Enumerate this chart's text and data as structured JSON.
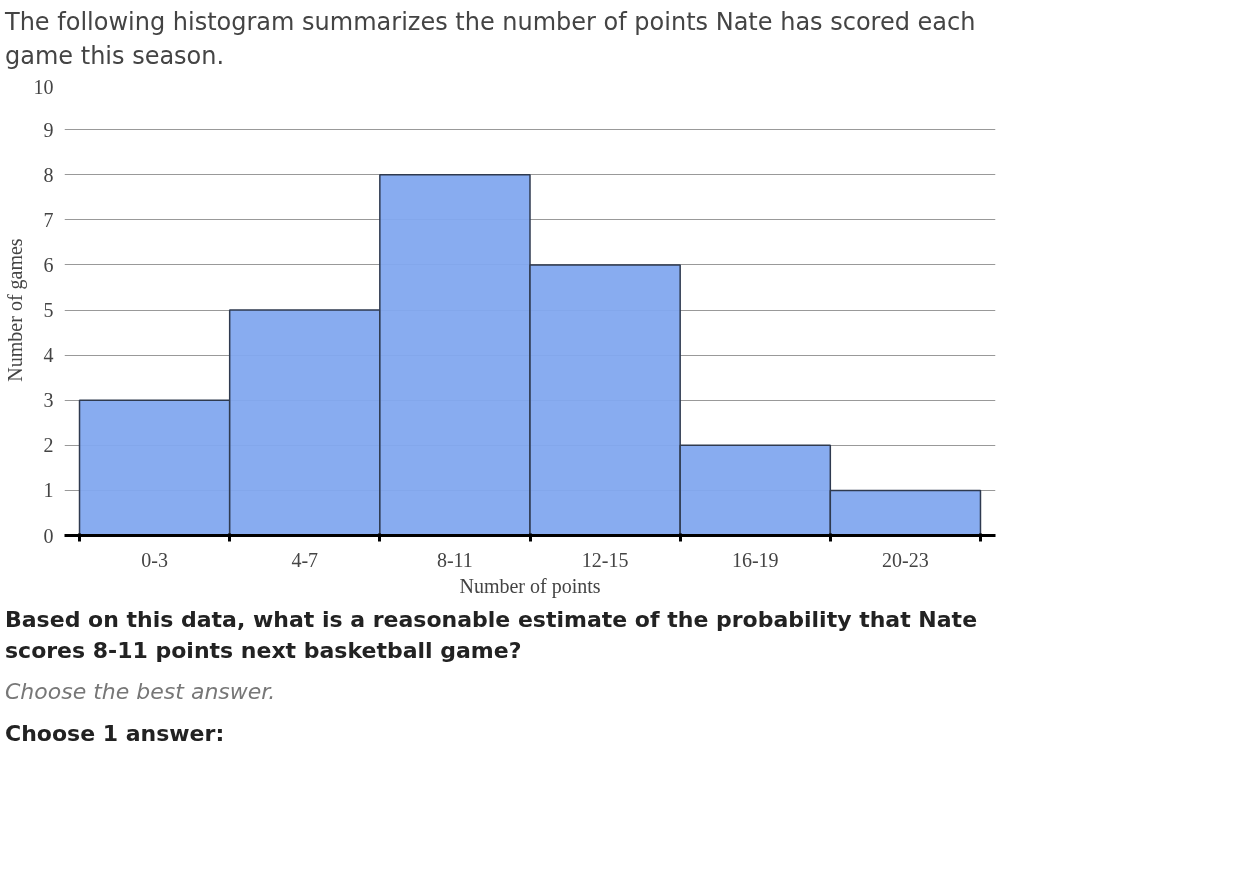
{
  "chart_data": {
    "type": "bar",
    "title": "The following histogram summarizes the number of points Nate has scored each game this season.",
    "xlabel": "Number of points",
    "ylabel": "Number of games",
    "categories": [
      "0-3",
      "4-7",
      "8-11",
      "12-15",
      "16-19",
      "20-23"
    ],
    "values": [
      3,
      5,
      8,
      6,
      2,
      1
    ],
    "color": "#82a8ef",
    "ylim": [
      0,
      10
    ],
    "yticks": [
      0,
      1,
      2,
      3,
      4,
      5,
      6,
      7,
      8,
      9,
      10
    ],
    "grid": "y",
    "annotations": [
      "Based on this data, what is a reasonable estimate of the probability that Nate scores 8-11 points next basketball game?",
      "Choose the best answer.",
      "Choose 1 answer:"
    ]
  }
}
